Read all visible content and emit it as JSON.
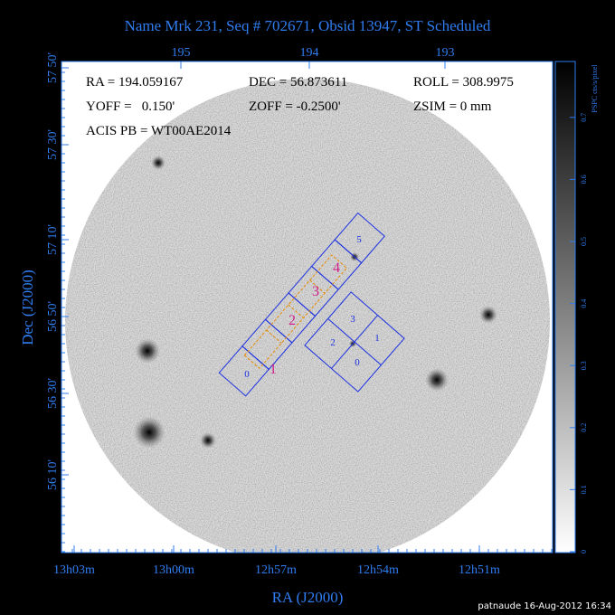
{
  "title": "Name Mrk 231, Seq # 702671, Obsid 13947, ST Scheduled",
  "info": {
    "row1": [
      "RA = 194.059167",
      "DEC = 56.873611",
      "ROLL = 308.9975"
    ],
    "row2": [
      "YOFF =   0.150'",
      "ZOFF = -0.2500'",
      "ZSIM = 0 mm"
    ],
    "row3": [
      "ACIS PB = WT00AE2014"
    ]
  },
  "top_axis": {
    "ticks": [
      "195",
      "194",
      "193"
    ]
  },
  "left_axis": {
    "title": "Dec (J2000)",
    "ticks": [
      "57 50'",
      "57 30'",
      "57 10'",
      "56 50'",
      "56 30'",
      "56 10'"
    ]
  },
  "bottom_axis": {
    "title": "RA (J2000)",
    "ticks": [
      "13h03m",
      "13h00m",
      "12h57m",
      "12h54m",
      "12h51m"
    ]
  },
  "colorbar": {
    "title": "PSPC cts/s/pixel",
    "ticks": [
      "0",
      "0.1",
      "0.2",
      "0.3",
      "0.4",
      "0.5",
      "0.6",
      "0.7"
    ]
  },
  "chips": {
    "s_array": [
      "0",
      "5"
    ],
    "subarray": [
      "1",
      "2",
      "3",
      "4"
    ],
    "i_array": [
      "3",
      "1",
      "0",
      "2"
    ]
  },
  "footer": "patnaude 16-Aug-2012 16:34"
}
